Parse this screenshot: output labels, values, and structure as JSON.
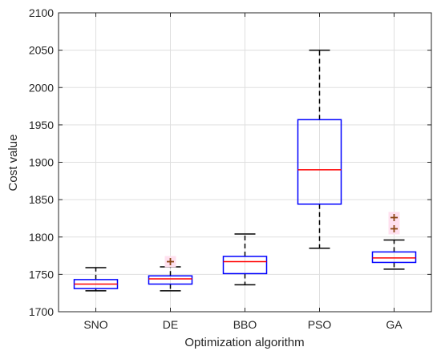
{
  "colors": {
    "box": "#0000ff",
    "median": "#ff0000",
    "whisker": "#000000",
    "outlier": "#8b4513",
    "outlier_halo": "#ffe0ef",
    "grid": "#dfdfdf",
    "axis": "#262626"
  },
  "chart_data": {
    "type": "box",
    "xlabel": "Optimization algorithm",
    "ylabel": "Cost value",
    "ylim": [
      1700,
      2100
    ],
    "yticks": [
      1700,
      1750,
      1800,
      1850,
      1900,
      1950,
      2000,
      2050,
      2100
    ],
    "grid": true,
    "categories": [
      "SNO",
      "DE",
      "BBO",
      "PSO",
      "GA"
    ],
    "boxes": [
      {
        "name": "SNO",
        "whisker_low": 1728,
        "q1": 1731,
        "median": 1737,
        "q3": 1743,
        "whisker_high": 1759,
        "outliers": []
      },
      {
        "name": "DE",
        "whisker_low": 1728,
        "q1": 1737,
        "median": 1744,
        "q3": 1748,
        "whisker_high": 1760,
        "outliers": [
          1767
        ]
      },
      {
        "name": "BBO",
        "whisker_low": 1736,
        "q1": 1751,
        "median": 1767,
        "q3": 1774,
        "whisker_high": 1804,
        "outliers": []
      },
      {
        "name": "PSO",
        "whisker_low": 1785,
        "q1": 1844,
        "median": 1890,
        "q3": 1957,
        "whisker_high": 2050,
        "outliers": []
      },
      {
        "name": "GA",
        "whisker_low": 1757,
        "q1": 1766,
        "median": 1772,
        "q3": 1780,
        "whisker_high": 1796,
        "outliers": [
          1811,
          1826
        ]
      }
    ]
  }
}
